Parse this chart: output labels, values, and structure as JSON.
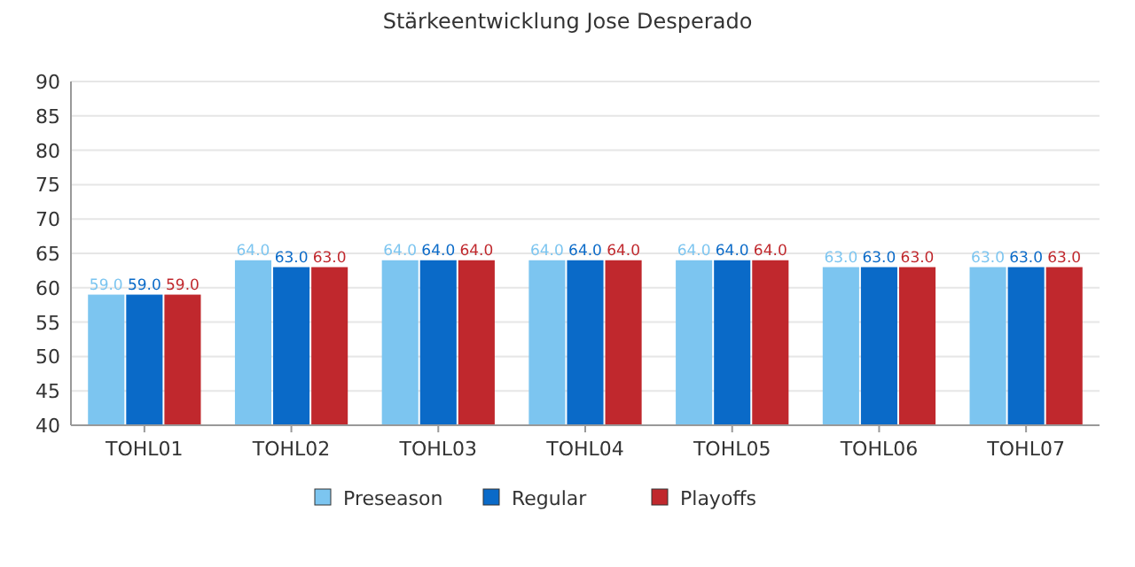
{
  "chart_data": {
    "type": "bar",
    "title": "Stärkeentwicklung Jose Desperado",
    "categories": [
      "TOHL01",
      "TOHL02",
      "TOHL03",
      "TOHL04",
      "TOHL05",
      "TOHL06",
      "TOHL07"
    ],
    "series": [
      {
        "name": "Preseason",
        "color": "#7cc5f0",
        "values": [
          59,
          64,
          64,
          64,
          64,
          63,
          63
        ],
        "value_labels": [
          "59.0",
          "64.0",
          "64.0",
          "64.0",
          "64.0",
          "63.0",
          "63.0"
        ]
      },
      {
        "name": "Regular",
        "color": "#0a6ac8",
        "values": [
          59,
          63,
          64,
          64,
          64,
          63,
          63
        ],
        "value_labels": [
          "59.0",
          "63.0",
          "64.0",
          "64.0",
          "64.0",
          "63.0",
          "63.0"
        ]
      },
      {
        "name": "Playoffs",
        "color": "#c0282d",
        "values": [
          59,
          63,
          64,
          64,
          64,
          63,
          63
        ],
        "value_labels": [
          "59.0",
          "63.0",
          "64.0",
          "64.0",
          "64.0",
          "63.0",
          "63.0"
        ]
      }
    ],
    "ylim": [
      40,
      90
    ],
    "yticks": [
      40,
      45,
      50,
      55,
      60,
      65,
      70,
      75,
      80,
      85,
      90
    ],
    "grid": "y",
    "legend": "bottom"
  }
}
